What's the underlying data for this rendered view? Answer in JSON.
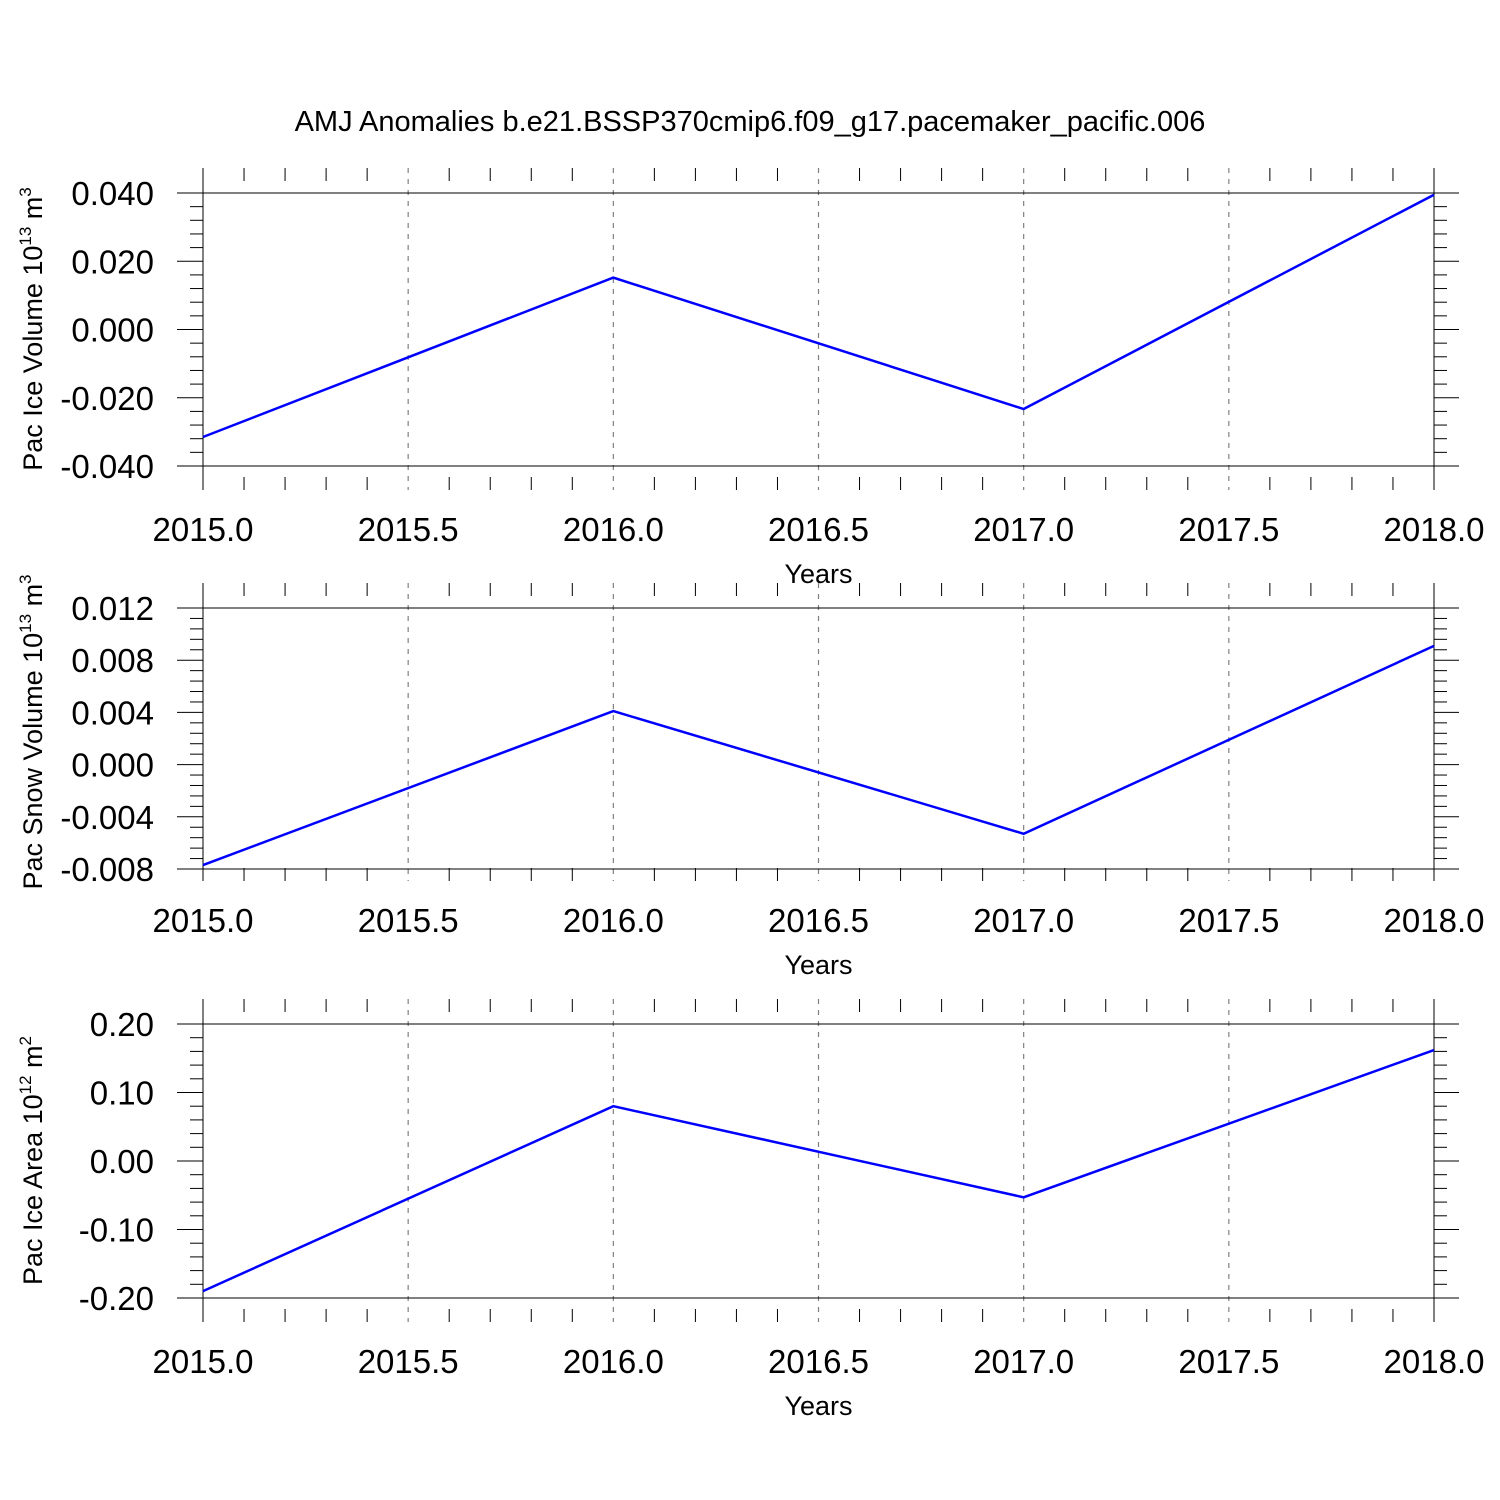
{
  "figure": {
    "title": "AMJ Anomalies b.e21.BSSP370cmip6.f09_g17.pacemaker_pacific.006"
  },
  "colors": {
    "line": "#0000ff",
    "axis": "#000000",
    "grid": "#808080",
    "background": "#ffffff"
  },
  "chart_data": [
    {
      "type": "line",
      "title": "",
      "xlabel": "Years",
      "ylabel": {
        "prefix": "Pac Ice Volume 10",
        "exp": "13",
        "mid": " m",
        "exp2": "3"
      },
      "xlim": [
        2015.0,
        2018.0
      ],
      "ylim": [
        -0.04,
        0.04
      ],
      "xticks": [
        "2015.0",
        "2015.5",
        "2016.0",
        "2016.5",
        "2017.0",
        "2017.5",
        "2018.0"
      ],
      "xtick_values": [
        2015.0,
        2015.5,
        2016.0,
        2016.5,
        2017.0,
        2017.5,
        2018.0
      ],
      "yticks": [
        "0.040",
        "0.020",
        "0.000",
        "-0.020",
        "-0.040"
      ],
      "ytick_values": [
        0.04,
        0.02,
        0.0,
        -0.02,
        -0.04
      ],
      "x_grid": "dashed vertical at major x ticks",
      "series": [
        {
          "x": [
            2015.0,
            2016.0,
            2017.0,
            2018.0
          ],
          "values": [
            -0.0315,
            0.0152,
            -0.0233,
            0.0395
          ]
        }
      ]
    },
    {
      "type": "line",
      "title": "",
      "xlabel": "Years",
      "ylabel": {
        "prefix": "Pac Snow Volume 10",
        "exp": "13",
        "mid": " m",
        "exp2": "3"
      },
      "xlim": [
        2015.0,
        2018.0
      ],
      "ylim": [
        -0.009,
        0.012
      ],
      "xticks": [
        "2015.0",
        "2015.5",
        "2016.0",
        "2016.5",
        "2017.0",
        "2017.5",
        "2018.0"
      ],
      "xtick_values": [
        2015.0,
        2015.5,
        2016.0,
        2016.5,
        2017.0,
        2017.5,
        2018.0
      ],
      "yticks": [
        "0.012",
        "0.008",
        "0.004",
        "0.000",
        "-0.004",
        "-0.008"
      ],
      "ytick_values": [
        0.012,
        0.008,
        0.004,
        0.0,
        -0.004,
        -0.008
      ],
      "x_grid": "dashed vertical at major x ticks",
      "series": [
        {
          "x": [
            2015.0,
            2016.0,
            2017.0,
            2018.0
          ],
          "values": [
            -0.0077,
            0.0041,
            -0.0053,
            0.0091
          ]
        }
      ]
    },
    {
      "type": "line",
      "title": "",
      "xlabel": "Years",
      "ylabel": {
        "prefix": "Pac Ice Area 10",
        "exp": "12",
        "mid": " m",
        "exp2": "2"
      },
      "xlim": [
        2015.0,
        2018.0
      ],
      "ylim": [
        -0.2,
        0.2
      ],
      "xticks": [
        "2015.0",
        "2015.5",
        "2016.0",
        "2016.5",
        "2017.0",
        "2017.5",
        "2018.0"
      ],
      "xtick_values": [
        2015.0,
        2015.5,
        2016.0,
        2016.5,
        2017.0,
        2017.5,
        2018.0
      ],
      "yticks": [
        "0.20",
        "0.10",
        "0.00",
        "-0.10",
        "-0.20"
      ],
      "ytick_values": [
        0.2,
        0.1,
        0.0,
        -0.1,
        -0.2
      ],
      "x_grid": "dashed vertical at major x ticks",
      "series": [
        {
          "x": [
            2015.0,
            2016.0,
            2017.0,
            2018.0
          ],
          "values": [
            -0.19,
            0.08,
            -0.053,
            0.162
          ]
        }
      ]
    }
  ]
}
